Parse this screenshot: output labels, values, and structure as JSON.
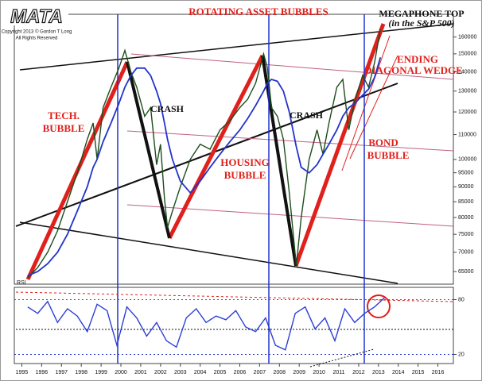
{
  "chart_data": [
    {
      "type": "line",
      "title": "ROTATING ASSET BUBBLES",
      "logo": "MATA",
      "copyright": [
        "Copyright 2013 © Gordon T Long",
        "All Rights Reserved"
      ],
      "annotations": [
        "MEGAPHONE TOP",
        "(in the S&P 500)",
        "ENDING",
        "DIAGONAL WEDGE",
        "TECH.",
        "BUBBLE",
        "CRASH",
        "CRASH",
        "HOUSING",
        "BUBBLE",
        "BOND",
        "BUBBLE"
      ],
      "log_scale": true,
      "x": [
        1995.3,
        1995.8,
        1996.3,
        1996.8,
        1997.3,
        1997.8,
        1998.3,
        1998.6,
        1998.8,
        1999.1,
        1999.5,
        1999.9,
        2000.2,
        2000.5,
        2000.8,
        2001.2,
        2001.5,
        2001.8,
        2002.0,
        2002.2,
        2002.35,
        2002.6,
        2003.0,
        2003.5,
        2004.0,
        2004.5,
        2005.0,
        2005.5,
        2006.0,
        2006.4,
        2006.8,
        2007.2,
        2007.4,
        2007.6,
        2007.9,
        2008.2,
        2008.5,
        2008.85,
        2009.1,
        2009.5,
        2009.9,
        2010.2,
        2010.5,
        2010.9,
        2011.2,
        2011.5,
        2011.8,
        2012.2,
        2012.5,
        2012.8,
        2013.1
      ],
      "series": [
        {
          "color": "#1b4d1b",
          "values": [
            63500,
            66000,
            70000,
            76000,
            85000,
            95000,
            108000,
            115000,
            100000,
            122000,
            132000,
            142000,
            152000,
            140000,
            132000,
            118000,
            122000,
            98000,
            106000,
            86000,
            77000,
            82000,
            90000,
            100000,
            106000,
            104000,
            112000,
            116000,
            122000,
            126000,
            134000,
            150000,
            142000,
            122000,
            118000,
            108000,
            88000,
            66500,
            80000,
            100000,
            112000,
            102000,
            115000,
            132000,
            136000,
            112000,
            125000,
            138000,
            132000,
            145000,
            165000
          ]
        },
        {
          "color": "#2233cc",
          "values": [
            64000,
            65000,
            67000,
            70000,
            75000,
            82000,
            90000,
            97000,
            100000,
            107000,
            115000,
            124000,
            132000,
            138000,
            142000,
            142000,
            138000,
            130000,
            124000,
            115000,
            108000,
            100000,
            92000,
            88000,
            92000,
            97000,
            102000,
            107000,
            112000,
            117000,
            123000,
            130000,
            134000,
            136000,
            135000,
            130000,
            120000,
            105000,
            97000,
            95000,
            98000,
            102000,
            106000,
            112000,
            118000,
            122000,
            124000,
            128000,
            131000,
            137000,
            148000
          ]
        }
      ],
      "xlim": [
        1994.7,
        2016.7
      ],
      "ylim": [
        62500,
        172500
      ],
      "yticks": [
        160000,
        150000,
        140000,
        130000,
        120000,
        110000,
        100000,
        95000,
        90000,
        85000,
        80000,
        75000,
        70000,
        65000
      ]
    },
    {
      "type": "line",
      "label": "RSI",
      "x": [
        1995.3,
        1995.8,
        1996.3,
        1996.8,
        1997.3,
        1997.8,
        1998.3,
        1998.8,
        1999.3,
        1999.8,
        2000.3,
        2000.8,
        2001.3,
        2001.8,
        2002.3,
        2002.8,
        2003.3,
        2003.8,
        2004.3,
        2004.8,
        2005.3,
        2005.8,
        2006.3,
        2006.8,
        2007.3,
        2007.8,
        2008.3,
        2008.8,
        2009.3,
        2009.8,
        2010.3,
        2010.8,
        2011.3,
        2011.8,
        2012.3,
        2012.8,
        2013.3
      ],
      "series": [
        {
          "color": "#2b3fd6",
          "values": [
            72,
            65,
            78,
            55,
            70,
            62,
            45,
            75,
            68,
            30,
            72,
            60,
            40,
            55,
            35,
            28,
            60,
            70,
            55,
            62,
            58,
            68,
            50,
            45,
            60,
            30,
            25,
            65,
            72,
            48,
            60,
            35,
            70,
            55,
            65,
            72,
            82
          ]
        }
      ],
      "xlim": [
        1994.7,
        2016.7
      ],
      "xticks": [
        1995,
        1996,
        1997,
        1998,
        1999,
        2000,
        2001,
        2002,
        2003,
        2004,
        2005,
        2006,
        2007,
        2008,
        2009,
        2010,
        2011,
        2012,
        2013,
        2014,
        2015,
        2016
      ],
      "ylim": [
        10,
        90
      ],
      "yticks": [
        20,
        80
      ]
    }
  ]
}
